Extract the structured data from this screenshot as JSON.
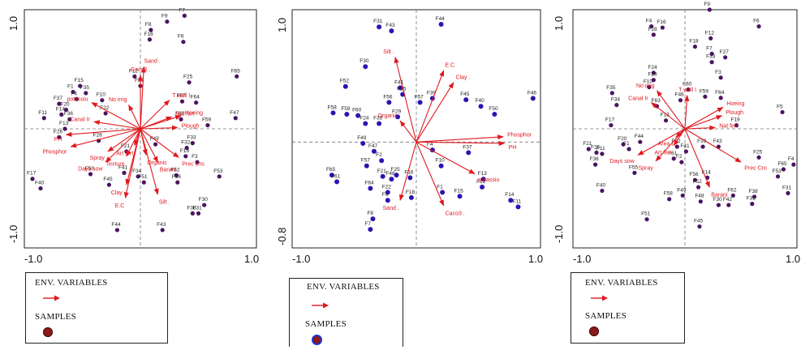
{
  "colors": {
    "arrow": "#e0191f",
    "sample_panel1": "#4a1360",
    "sample_panel2": "#2b14b3",
    "sample_panel3": "#4a1360",
    "legend_dot_1": "#8b1a1a",
    "legend_dot_2_fill": "#8b1a1a",
    "legend_dot_2_ring": "#2233cc",
    "legend_dot_3": "#8b1a1a",
    "axis_dash": "#777777"
  },
  "legends": [
    {
      "title": "ENV. VARIABLES",
      "samples_label": "SAMPLES"
    },
    {
      "title": "ENV. VARIABLES",
      "samples_label": "SAMPLES"
    },
    {
      "title": "ENV. VARIABLES",
      "samples_label": "SAMPLES"
    }
  ],
  "chart_data": [
    {
      "type": "scatter",
      "subtype": "biplot",
      "title": "",
      "xlabel": "",
      "ylabel": "",
      "xlim": [
        -1.0,
        1.0
      ],
      "ylim": [
        -1.0,
        1.0
      ],
      "xticks": [
        "-1.0",
        "1.0"
      ],
      "yticks": [
        "1.0",
        "-1.0"
      ],
      "origin_label": [
        0.0,
        0.0
      ],
      "arrows": [
        {
          "name": "Caco3 .",
          "x": 0.0,
          "y": 0.45
        },
        {
          "name": "Sand .",
          "x": 0.03,
          "y": 0.52
        },
        {
          "name": "T well I",
          "x": 0.25,
          "y": 0.24
        },
        {
          "name": "potassiu",
          "x": -0.42,
          "y": 0.22
        },
        {
          "name": "No irrig",
          "x": -0.1,
          "y": 0.2
        },
        {
          "name": "Nat fert",
          "x": 0.27,
          "y": 0.1
        },
        {
          "name": "Canal Ir",
          "x": -0.4,
          "y": 0.06
        },
        {
          "name": "Hoeing",
          "x": 0.35,
          "y": 0.11
        },
        {
          "name": "Plough",
          "x": 0.32,
          "y": 0.01
        },
        {
          "name": "PH",
          "x": -0.64,
          "y": -0.05
        },
        {
          "name": "Phosphor",
          "x": -0.6,
          "y": -0.15
        },
        {
          "name": "Art fert",
          "x": -0.05,
          "y": -0.14
        },
        {
          "name": "Spray",
          "x": -0.28,
          "y": -0.19
        },
        {
          "name": "Days sow",
          "x": -0.3,
          "y": -0.28
        },
        {
          "name": "Texture",
          "x": -0.12,
          "y": -0.23
        },
        {
          "name": "Organic",
          "x": 0.05,
          "y": -0.22
        },
        {
          "name": "Barani",
          "x": 0.15,
          "y": -0.28
        },
        {
          "name": "Prec Cro",
          "x": 0.33,
          "y": -0.24
        },
        {
          "name": "Clay .",
          "x": -0.12,
          "y": -0.47
        },
        {
          "name": "E.C",
          "x": -0.13,
          "y": -0.58
        },
        {
          "name": "Silt .",
          "x": 0.15,
          "y": -0.55
        }
      ],
      "points": [
        {
          "label": "F7",
          "x": 0.38,
          "y": 0.95
        },
        {
          "label": "F9",
          "x": 0.23,
          "y": 0.9
        },
        {
          "label": "F8",
          "x": 0.09,
          "y": 0.83
        },
        {
          "label": "F18",
          "x": 0.08,
          "y": 0.75
        },
        {
          "label": "F6",
          "x": 0.37,
          "y": 0.73
        },
        {
          "label": "F65",
          "x": 0.83,
          "y": 0.44
        },
        {
          "label": "F25",
          "x": 0.42,
          "y": 0.39
        },
        {
          "label": "F12",
          "x": -0.05,
          "y": 0.44
        },
        {
          "label": "F56",
          "x": 0.0,
          "y": 0.36
        },
        {
          "label": "F15",
          "x": -0.52,
          "y": 0.36
        },
        {
          "label": "F1",
          "x": -0.58,
          "y": 0.31
        },
        {
          "label": "F35",
          "x": -0.47,
          "y": 0.3
        },
        {
          "label": "F4",
          "x": -0.55,
          "y": 0.25
        },
        {
          "label": "F10",
          "x": -0.33,
          "y": 0.24
        },
        {
          "label": "F37",
          "x": -0.7,
          "y": 0.21
        },
        {
          "label": "F20",
          "x": -0.64,
          "y": 0.16
        },
        {
          "label": "F57",
          "x": 0.36,
          "y": 0.23
        },
        {
          "label": "F64",
          "x": 0.48,
          "y": 0.22
        },
        {
          "label": "F11",
          "x": -0.83,
          "y": 0.09
        },
        {
          "label": "F14",
          "x": -0.68,
          "y": 0.12
        },
        {
          "label": "F47",
          "x": 0.82,
          "y": 0.09
        },
        {
          "label": "F22",
          "x": -0.3,
          "y": 0.13
        },
        {
          "label": "F60",
          "x": 0.35,
          "y": 0.08
        },
        {
          "label": "F59",
          "x": 0.58,
          "y": 0.03
        },
        {
          "label": "F36",
          "x": -0.61,
          "y": 0.08
        },
        {
          "label": "F26",
          "x": -0.7,
          "y": -0.07
        },
        {
          "label": "F13",
          "x": -0.65,
          "y": 0.0
        },
        {
          "label": "F28",
          "x": -0.36,
          "y": -0.1
        },
        {
          "label": "F33",
          "x": 0.45,
          "y": -0.12
        },
        {
          "label": "F32",
          "x": 0.4,
          "y": -0.16
        },
        {
          "label": "F19",
          "x": 0.39,
          "y": -0.23
        },
        {
          "label": "F3",
          "x": 0.49,
          "y": -0.28
        },
        {
          "label": "F21",
          "x": -0.12,
          "y": -0.19
        },
        {
          "label": "F49",
          "x": 0.13,
          "y": -0.13
        },
        {
          "label": "F50",
          "x": -0.43,
          "y": -0.38
        },
        {
          "label": "F41",
          "x": -0.14,
          "y": -0.37
        },
        {
          "label": "F34",
          "x": -0.02,
          "y": -0.4
        },
        {
          "label": "F45",
          "x": -0.27,
          "y": -0.47
        },
        {
          "label": "F62",
          "x": 0.31,
          "y": -0.39
        },
        {
          "label": "F51",
          "x": 0.03,
          "y": -0.45
        },
        {
          "label": "F53",
          "x": 0.68,
          "y": -0.4
        },
        {
          "label": "F56b",
          "x": 0.32,
          "y": -0.45
        },
        {
          "label": "F17",
          "x": -0.93,
          "y": -0.42
        },
        {
          "label": "F40",
          "x": -0.86,
          "y": -0.5
        },
        {
          "label": "F30",
          "x": 0.55,
          "y": -0.64
        },
        {
          "label": "F38",
          "x": 0.45,
          "y": -0.71
        },
        {
          "label": "F31",
          "x": 0.5,
          "y": -0.71
        },
        {
          "label": "F44",
          "x": -0.2,
          "y": -0.85
        },
        {
          "label": "F43",
          "x": 0.19,
          "y": -0.85
        }
      ]
    },
    {
      "type": "scatter",
      "subtype": "biplot",
      "title": "",
      "xlabel": "",
      "ylabel": "",
      "xlim": [
        -1.0,
        1.0
      ],
      "ylim": [
        -0.8,
        1.0
      ],
      "xticks": [
        "-1.0",
        "1.0"
      ],
      "yticks": [
        "1.0",
        "-0.8"
      ],
      "arrows": [
        {
          "name": "Silt .",
          "x": -0.17,
          "y": 0.64
        },
        {
          "name": "E.C",
          "x": 0.22,
          "y": 0.54
        },
        {
          "name": "Clay .",
          "x": 0.3,
          "y": 0.45
        },
        {
          "name": "Organic",
          "x": -0.13,
          "y": 0.16
        },
        {
          "name": "Phosphor",
          "x": 0.7,
          "y": 0.04
        },
        {
          "name": "PH",
          "x": 0.71,
          "y": -0.01
        },
        {
          "name": "potassiu",
          "x": 0.47,
          "y": -0.24
        },
        {
          "name": "Caco3 .",
          "x": 0.22,
          "y": -0.48
        },
        {
          "name": "Sand .",
          "x": -0.13,
          "y": -0.44
        }
      ],
      "points": [
        {
          "label": "F31",
          "x": -0.3,
          "y": 0.87
        },
        {
          "label": "F43",
          "x": -0.2,
          "y": 0.84
        },
        {
          "label": "F44",
          "x": 0.2,
          "y": 0.89
        },
        {
          "label": "F30",
          "x": -0.41,
          "y": 0.57
        },
        {
          "label": "F52",
          "x": -0.57,
          "y": 0.42
        },
        {
          "label": "F41",
          "x": -0.13,
          "y": 0.41
        },
        {
          "label": "F55",
          "x": -0.11,
          "y": 0.36
        },
        {
          "label": "F56",
          "x": -0.22,
          "y": 0.3
        },
        {
          "label": "F57",
          "x": 0.03,
          "y": 0.3
        },
        {
          "label": "F39",
          "x": 0.13,
          "y": 0.33
        },
        {
          "label": "F45",
          "x": 0.4,
          "y": 0.32
        },
        {
          "label": "F40",
          "x": 0.52,
          "y": 0.27
        },
        {
          "label": "F50",
          "x": 0.63,
          "y": 0.21
        },
        {
          "label": "F46",
          "x": 0.94,
          "y": 0.33
        },
        {
          "label": "F58",
          "x": -0.67,
          "y": 0.22
        },
        {
          "label": "F59",
          "x": -0.56,
          "y": 0.21
        },
        {
          "label": "F60",
          "x": -0.47,
          "y": 0.2
        },
        {
          "label": "F29",
          "x": -0.15,
          "y": 0.19
        },
        {
          "label": "F33",
          "x": -0.3,
          "y": 0.14
        },
        {
          "label": "F24",
          "x": -0.41,
          "y": 0.14
        },
        {
          "label": "F49",
          "x": -0.43,
          "y": -0.01
        },
        {
          "label": "F47",
          "x": -0.34,
          "y": -0.07
        },
        {
          "label": "F2",
          "x": -0.28,
          "y": -0.14
        },
        {
          "label": "F4",
          "x": 0.13,
          "y": -0.06
        },
        {
          "label": "F37",
          "x": 0.42,
          "y": -0.08
        },
        {
          "label": "F10",
          "x": 0.2,
          "y": -0.18
        },
        {
          "label": "F57b",
          "x": -0.4,
          "y": -0.18
        },
        {
          "label": "F21",
          "x": -0.27,
          "y": -0.26
        },
        {
          "label": "F48",
          "x": -0.2,
          "y": -0.28
        },
        {
          "label": "F25",
          "x": -0.16,
          "y": -0.25
        },
        {
          "label": "F16",
          "x": -0.05,
          "y": -0.27
        },
        {
          "label": "F65",
          "x": -0.68,
          "y": -0.25
        },
        {
          "label": "F61",
          "x": -0.64,
          "y": -0.3
        },
        {
          "label": "F64",
          "x": -0.37,
          "y": -0.35
        },
        {
          "label": "F22",
          "x": -0.23,
          "y": -0.38
        },
        {
          "label": "F13",
          "x": 0.54,
          "y": -0.28
        },
        {
          "label": "F12",
          "x": 0.53,
          "y": -0.34
        },
        {
          "label": "F1",
          "x": 0.21,
          "y": -0.38
        },
        {
          "label": "F15",
          "x": 0.35,
          "y": -0.41
        },
        {
          "label": "F14",
          "x": 0.76,
          "y": -0.44
        },
        {
          "label": "F11",
          "x": 0.82,
          "y": -0.49
        },
        {
          "label": "F9",
          "x": -0.23,
          "y": -0.44
        },
        {
          "label": "F18",
          "x": -0.04,
          "y": -0.42
        },
        {
          "label": "F8",
          "x": -0.35,
          "y": -0.58
        },
        {
          "label": "F7",
          "x": -0.37,
          "y": -0.66
        }
      ]
    },
    {
      "type": "scatter",
      "subtype": "biplot",
      "title": "",
      "xlabel": "",
      "ylabel": "",
      "xlim": [
        -1.0,
        1.0
      ],
      "ylim": [
        -1.0,
        1.0
      ],
      "xticks": [
        "-1.0",
        "1.0"
      ],
      "yticks": [
        "1.0",
        "-1.0"
      ],
      "arrows": [
        {
          "name": "No irrig",
          "x": -0.25,
          "y": 0.32
        },
        {
          "name": "Canal Ir",
          "x": -0.3,
          "y": 0.22
        },
        {
          "name": "T well I",
          "x": 0.02,
          "y": 0.28
        },
        {
          "name": "Hoeing",
          "x": 0.34,
          "y": 0.18
        },
        {
          "name": "Plough",
          "x": 0.33,
          "y": 0.11
        },
        {
          "name": "Nat fert",
          "x": 0.27,
          "y": 0.01
        },
        {
          "name": "Area I",
          "x": -0.08,
          "y": -0.07
        },
        {
          "name": "Art fert",
          "x": -0.1,
          "y": -0.14
        },
        {
          "name": "Days sow",
          "x": -0.42,
          "y": -0.22
        },
        {
          "name": "Spray",
          "x": -0.26,
          "y": -0.27
        },
        {
          "name": "Prec Cro",
          "x": 0.5,
          "y": -0.28
        },
        {
          "name": "Barani",
          "x": 0.22,
          "y": -0.49
        }
      ],
      "points": [
        {
          "label": "F9",
          "x": 0.22,
          "y": 1.0
        },
        {
          "label": "F4",
          "x": -0.3,
          "y": 0.86
        },
        {
          "label": "F16",
          "x": -0.2,
          "y": 0.85
        },
        {
          "label": "F28",
          "x": -0.28,
          "y": 0.79
        },
        {
          "label": "F6",
          "x": 0.66,
          "y": 0.86
        },
        {
          "label": "F12",
          "x": 0.23,
          "y": 0.76
        },
        {
          "label": "F18",
          "x": 0.09,
          "y": 0.69
        },
        {
          "label": "F7",
          "x": 0.24,
          "y": 0.63
        },
        {
          "label": "F27",
          "x": 0.36,
          "y": 0.6
        },
        {
          "label": "F33",
          "x": 0.24,
          "y": 0.56
        },
        {
          "label": "F3",
          "x": 0.32,
          "y": 0.43
        },
        {
          "label": "F24",
          "x": -0.28,
          "y": 0.47
        },
        {
          "label": "F29",
          "x": -0.28,
          "y": 0.41
        },
        {
          "label": "F10",
          "x": -0.32,
          "y": 0.35
        },
        {
          "label": "F35",
          "x": -0.65,
          "y": 0.3
        },
        {
          "label": "F60",
          "x": 0.03,
          "y": 0.33
        },
        {
          "label": "F59",
          "x": 0.18,
          "y": 0.27
        },
        {
          "label": "F46",
          "x": -0.04,
          "y": 0.24
        },
        {
          "label": "F34",
          "x": -0.61,
          "y": 0.2
        },
        {
          "label": "F63",
          "x": -0.25,
          "y": 0.19
        },
        {
          "label": "F64",
          "x": 0.32,
          "y": 0.26
        },
        {
          "label": "F5",
          "x": 0.87,
          "y": 0.14
        },
        {
          "label": "F17",
          "x": -0.66,
          "y": 0.03
        },
        {
          "label": "F13",
          "x": -0.17,
          "y": 0.07
        },
        {
          "label": "F19",
          "x": 0.46,
          "y": 0.03
        },
        {
          "label": "F44",
          "x": -0.4,
          "y": -0.11
        },
        {
          "label": "F20",
          "x": -0.55,
          "y": -0.13
        },
        {
          "label": "F1",
          "x": -0.5,
          "y": -0.17
        },
        {
          "label": "F21",
          "x": -0.86,
          "y": -0.17
        },
        {
          "label": "F26",
          "x": -0.79,
          "y": -0.2
        },
        {
          "label": "F11",
          "x": -0.74,
          "y": -0.21
        },
        {
          "label": "F22",
          "x": -0.07,
          "y": -0.15
        },
        {
          "label": "F41",
          "x": 0.01,
          "y": -0.19
        },
        {
          "label": "F39",
          "x": 0.16,
          "y": -0.15
        },
        {
          "label": "F43",
          "x": 0.3,
          "y": -0.15
        },
        {
          "label": "F25",
          "x": 0.66,
          "y": -0.24
        },
        {
          "label": "F61",
          "x": -0.1,
          "y": -0.25
        },
        {
          "label": "F2",
          "x": -0.03,
          "y": -0.28
        },
        {
          "label": "F36",
          "x": -0.8,
          "y": -0.3
        },
        {
          "label": "F55",
          "x": -0.45,
          "y": -0.37
        },
        {
          "label": "F65",
          "x": 0.88,
          "y": -0.34
        },
        {
          "label": "F53",
          "x": 0.83,
          "y": -0.4
        },
        {
          "label": "F4b",
          "x": 0.97,
          "y": -0.3
        },
        {
          "label": "F56",
          "x": 0.09,
          "y": -0.43
        },
        {
          "label": "F14",
          "x": 0.2,
          "y": -0.41
        },
        {
          "label": "F52",
          "x": 0.12,
          "y": -0.49
        },
        {
          "label": "F62",
          "x": 0.43,
          "y": -0.56
        },
        {
          "label": "F42",
          "x": 0.39,
          "y": -0.64
        },
        {
          "label": "F38",
          "x": 0.62,
          "y": -0.57
        },
        {
          "label": "F31",
          "x": 0.92,
          "y": -0.54
        },
        {
          "label": "F32",
          "x": 0.6,
          "y": -0.63
        },
        {
          "label": "F40",
          "x": -0.74,
          "y": -0.52
        },
        {
          "label": "F58",
          "x": -0.14,
          "y": -0.59
        },
        {
          "label": "F49",
          "x": -0.02,
          "y": -0.56
        },
        {
          "label": "F48",
          "x": 0.14,
          "y": -0.61
        },
        {
          "label": "F30",
          "x": 0.3,
          "y": -0.64
        },
        {
          "label": "F51",
          "x": -0.34,
          "y": -0.76
        },
        {
          "label": "F45",
          "x": 0.13,
          "y": -0.82
        }
      ]
    }
  ]
}
